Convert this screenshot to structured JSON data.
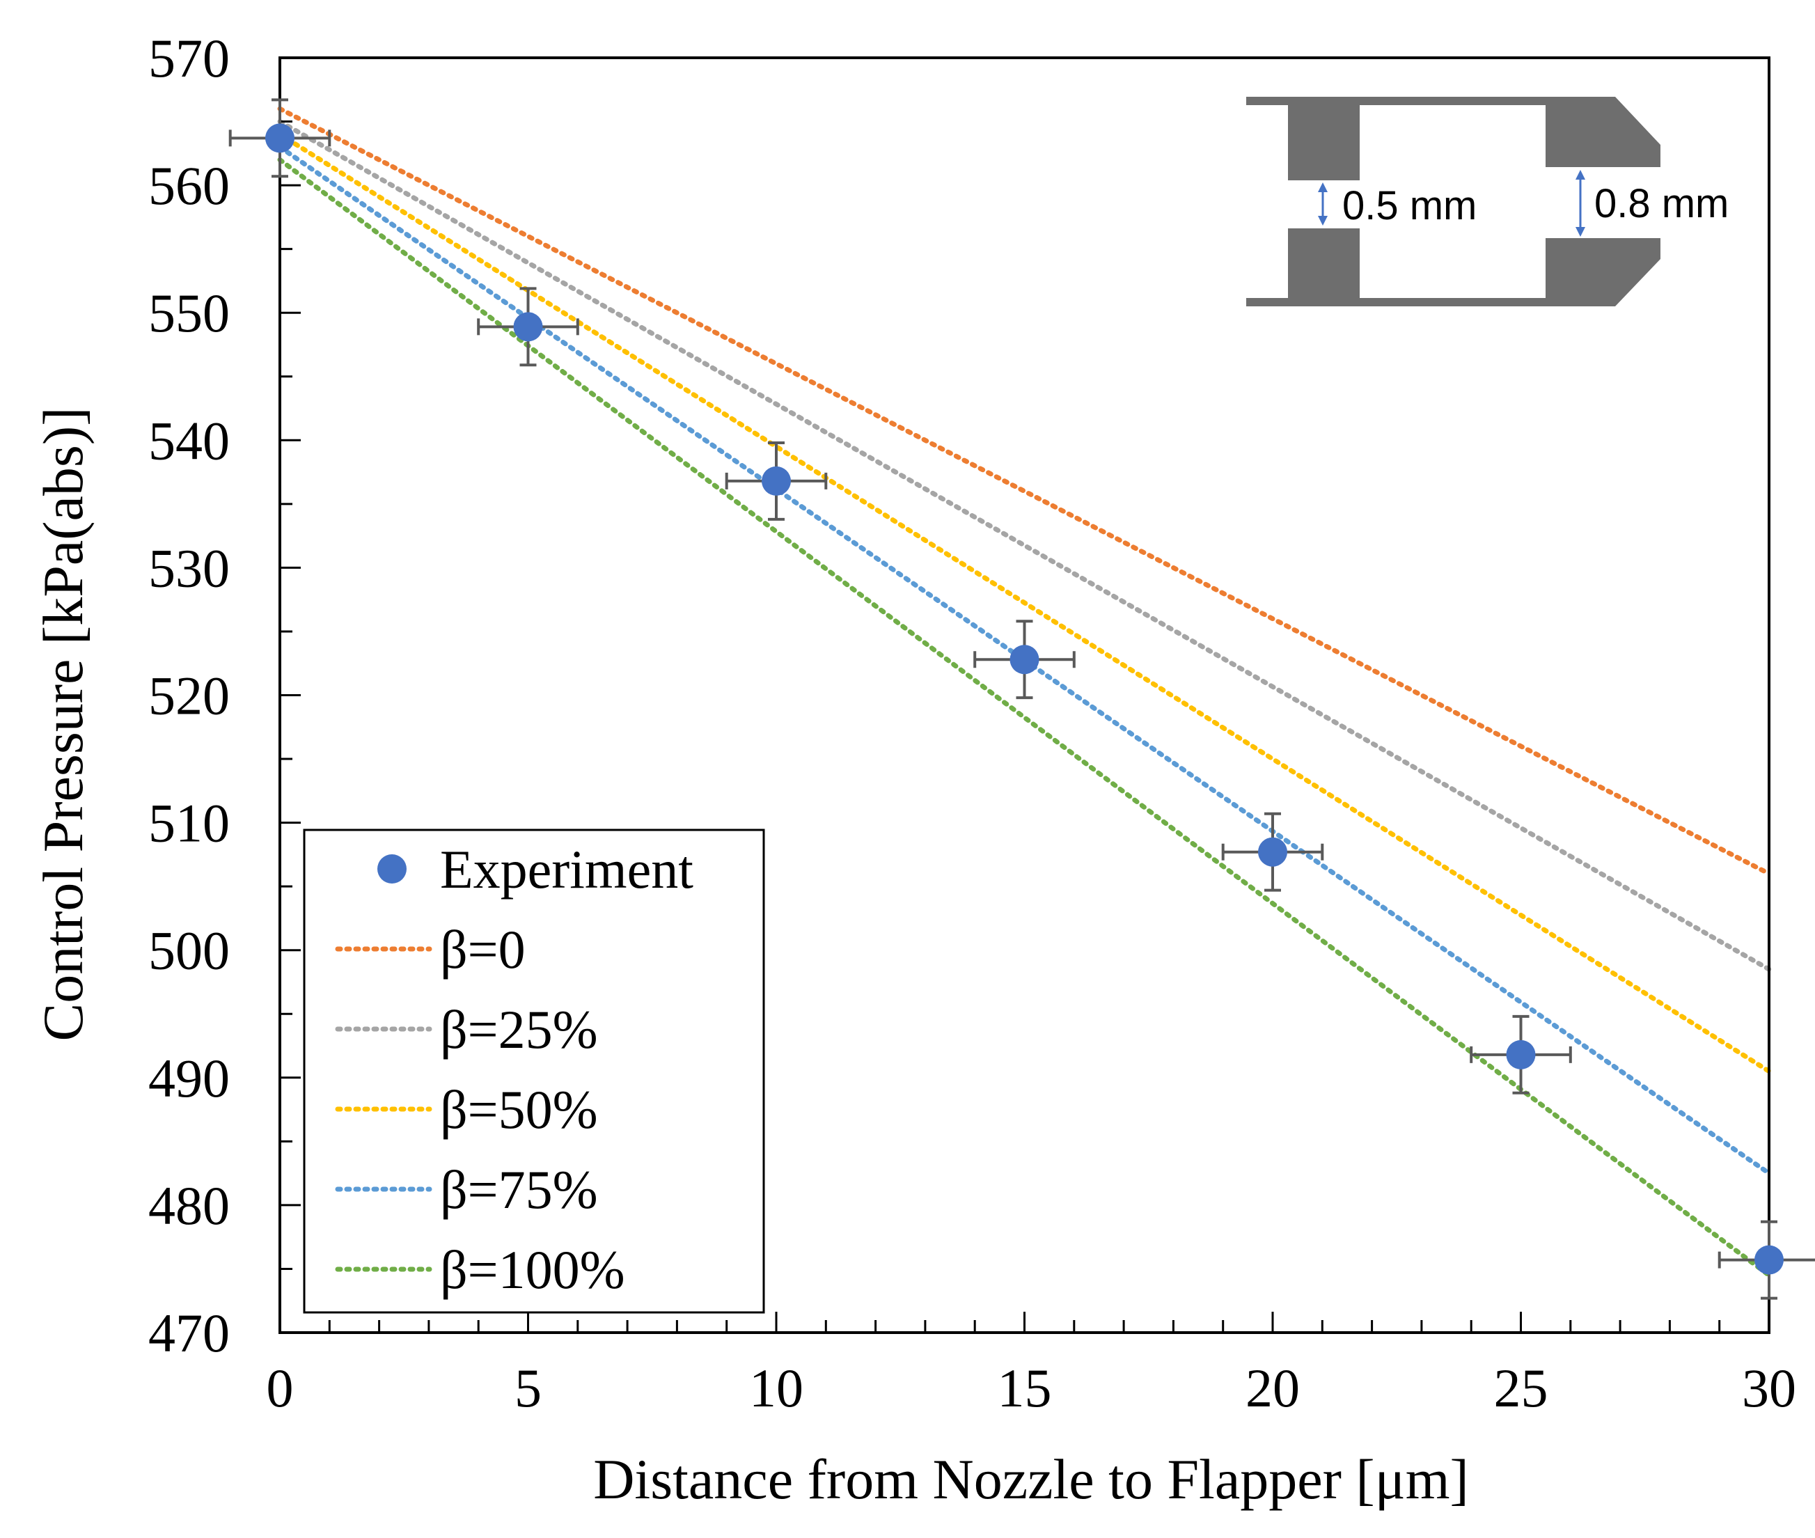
{
  "chart_data": {
    "type": "scatter",
    "title": "",
    "xlabel": "Distance from Nozzle to Flapper [μm]",
    "ylabel": "Control Pressure [kPa(abs)]",
    "xlim": [
      0,
      30
    ],
    "ylim": [
      470,
      570
    ],
    "x_ticks": [
      "0",
      "5",
      "10",
      "15",
      "20",
      "25",
      "30"
    ],
    "y_ticks": [
      "470",
      "480",
      "490",
      "500",
      "510",
      "520",
      "530",
      "540",
      "550",
      "560",
      "570"
    ],
    "x_minor_step": 1,
    "y_minor_step": 5,
    "grid": false,
    "legend_position": "bottom-left",
    "experiment": {
      "name": "Experiment",
      "color": "#4472C4",
      "x": [
        0,
        5,
        10,
        15,
        20,
        25,
        30
      ],
      "y": [
        563.7,
        548.9,
        536.8,
        522.8,
        507.7,
        491.8,
        475.7
      ],
      "x_err": [
        1,
        1,
        1,
        1,
        1,
        1,
        1
      ],
      "y_err": [
        3,
        3,
        3,
        3,
        3,
        3,
        3
      ],
      "error_color": "#595959"
    },
    "series": [
      {
        "name": "β=0",
        "color": "#ED7D31",
        "x": [
          0,
          30
        ],
        "y": [
          566.0,
          506.0
        ]
      },
      {
        "name": "β=25%",
        "color": "#A5A5A5",
        "x": [
          0,
          30
        ],
        "y": [
          565.0,
          498.5
        ]
      },
      {
        "name": "β=50%",
        "color": "#FFC000",
        "x": [
          0,
          30
        ],
        "y": [
          564.0,
          490.5
        ]
      },
      {
        "name": "β=75%",
        "color": "#5B9BD5",
        "x": [
          0,
          30
        ],
        "y": [
          563.0,
          482.5
        ]
      },
      {
        "name": "β=100%",
        "color": "#70AD47",
        "x": [
          0,
          30
        ],
        "y": [
          562.0,
          474.5
        ]
      }
    ],
    "inset": {
      "label_small_gap": "0.5 mm",
      "label_large_gap": "0.8 mm",
      "fill_color": "#6E6E6E",
      "arrow_color": "#4472C4"
    }
  }
}
